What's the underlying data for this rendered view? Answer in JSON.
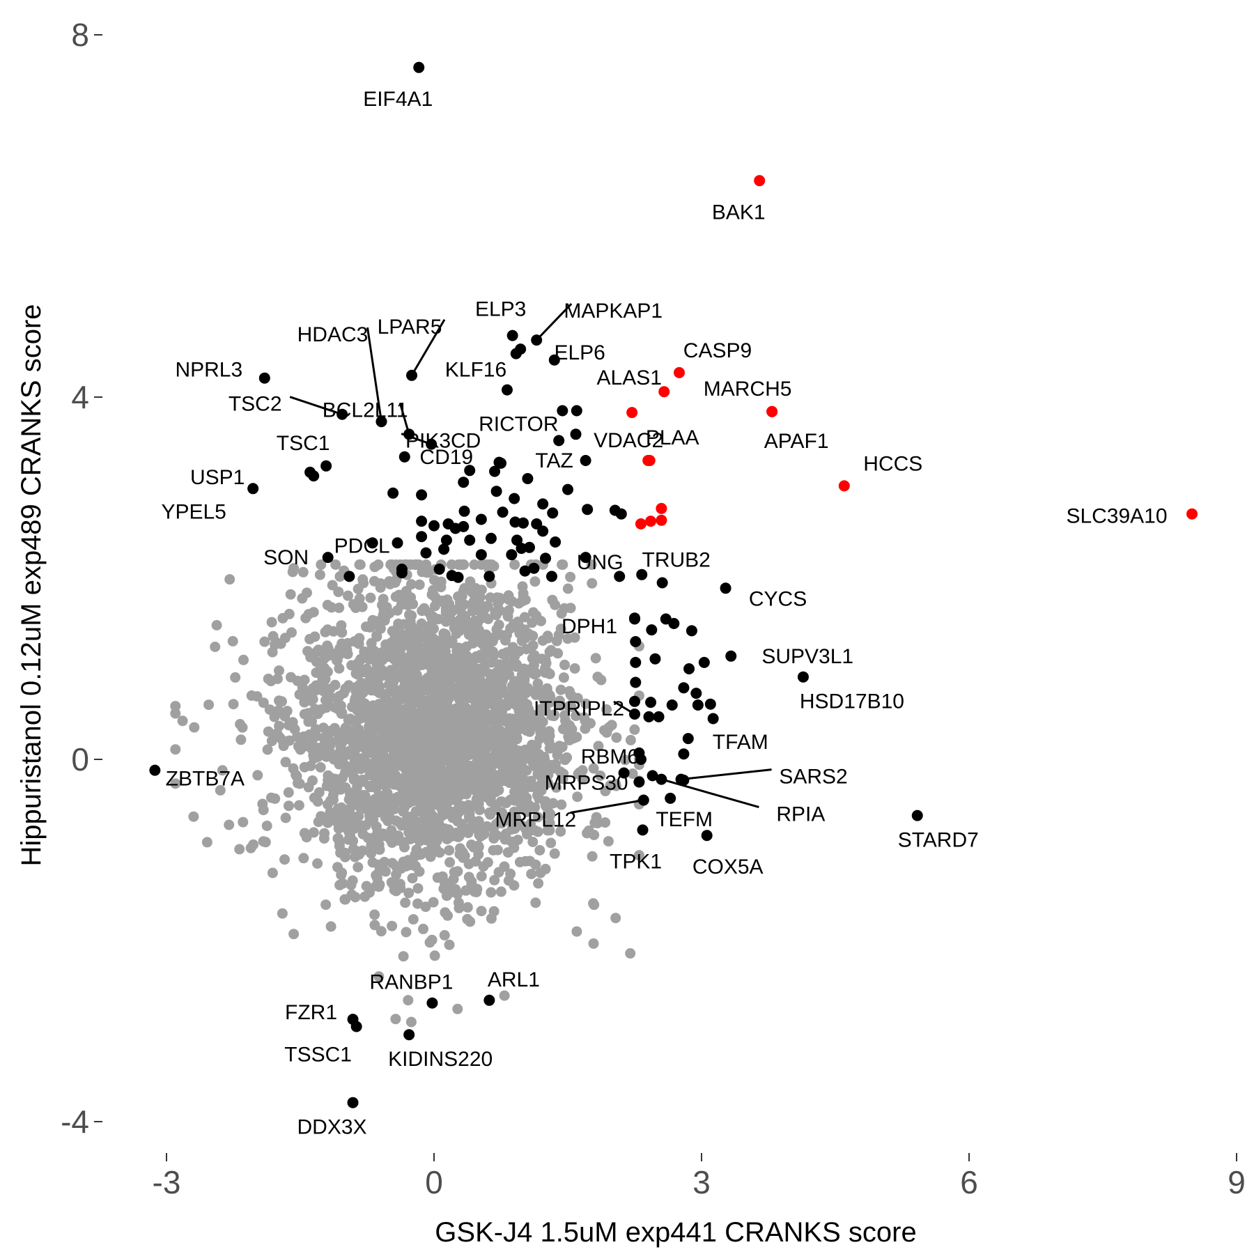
{
  "chart_data": {
    "type": "scatter",
    "xlabel": "GSK-J4 1.5uM exp441 CRANKS score",
    "ylabel": "Hippuristanol 0.12uM exp489 CRANKS score",
    "xlim": [
      -3.6,
      9.0
    ],
    "ylim": [
      -4.4,
      8.4
    ],
    "x_ticks": [
      -3,
      0,
      3,
      6,
      9
    ],
    "y_ticks": [
      -4,
      0,
      4,
      8
    ],
    "x_tick_labels": [
      "-3",
      "0",
      "3",
      "6",
      "9"
    ],
    "y_tick_labels": [
      "-4",
      "0",
      "4",
      "8"
    ],
    "grid": false,
    "legend": "none",
    "colors": {
      "background_cloud": "#a0a0a0",
      "highlight_black": "#000000",
      "highlight_red": "#ff0000"
    },
    "background_cloud": {
      "description_center": [
        0.0,
        0.3
      ],
      "spread_x": 0.75,
      "spread_y": 0.75,
      "color": "#a0a0a0"
    },
    "labeled_points": [
      {
        "label": "EIF4A1",
        "x": -0.17,
        "y": 7.64,
        "color": "#000000"
      },
      {
        "label": "BAK1",
        "x": 3.65,
        "y": 6.39,
        "color": "#ff0000"
      },
      {
        "label": "ELP3",
        "x": 0.88,
        "y": 4.68,
        "color": "#000000"
      },
      {
        "label": "MAPKAP1",
        "x": 1.15,
        "y": 4.63,
        "color": "#000000"
      },
      {
        "label": "ELP6",
        "x": 0.97,
        "y": 4.53,
        "color": "#000000"
      },
      {
        "label": "HDAC3",
        "x": -0.59,
        "y": 3.73,
        "color": "#000000"
      },
      {
        "label": "LPAR5",
        "x": -0.25,
        "y": 4.24,
        "color": "#000000"
      },
      {
        "label": "CASP9",
        "x": 2.75,
        "y": 4.27,
        "color": "#ff0000"
      },
      {
        "label": "NPRL3",
        "x": -1.9,
        "y": 4.21,
        "color": "#000000"
      },
      {
        "label": "BCL2L11",
        "x": -0.28,
        "y": 3.59,
        "color": "#000000"
      },
      {
        "label": "KLF16",
        "x": 0.82,
        "y": 4.08,
        "color": "#000000"
      },
      {
        "label": "ALAS1",
        "x": 2.58,
        "y": 4.06,
        "color": "#ff0000"
      },
      {
        "label": "MARCH5",
        "x": 3.79,
        "y": 3.84,
        "color": "#ff0000"
      },
      {
        "label": "TSC2",
        "x": -1.03,
        "y": 3.81,
        "color": "#000000"
      },
      {
        "label": "PIK3CD",
        "x": -0.03,
        "y": 3.48,
        "color": "#000000"
      },
      {
        "label": "RICTOR",
        "x": 1.44,
        "y": 3.85,
        "color": "#000000"
      },
      {
        "label": "VDAC2",
        "x": 2.22,
        "y": 3.83,
        "color": "#ff0000"
      },
      {
        "label": "APAF1",
        "x": 3.79,
        "y": 3.84,
        "color": "#ff0000"
      },
      {
        "label": "TSC1",
        "x": -1.21,
        "y": 3.24,
        "color": "#000000"
      },
      {
        "label": "CD19",
        "x": -0.33,
        "y": 3.34,
        "color": "#000000"
      },
      {
        "label": "TAZ",
        "x": 1.7,
        "y": 3.3,
        "color": "#000000"
      },
      {
        "label": "HCCS",
        "x": 4.6,
        "y": 3.02,
        "color": "#ff0000"
      },
      {
        "label": "USP1",
        "x": -1.35,
        "y": 3.13,
        "color": "#000000"
      },
      {
        "label": "PLAA",
        "x": 2.4,
        "y": 3.3,
        "color": "#ff0000"
      },
      {
        "label": "SLC39A10",
        "x": 8.5,
        "y": 2.71,
        "color": "#ff0000"
      },
      {
        "label": "YPEL5",
        "x": -2.03,
        "y": 2.99,
        "color": "#000000"
      },
      {
        "label": "PDCL",
        "x": -0.69,
        "y": 2.39,
        "color": "#000000"
      },
      {
        "label": "SON",
        "x": -1.19,
        "y": 2.23,
        "color": "#000000"
      },
      {
        "label": "TRUB2",
        "x": 2.56,
        "y": 1.95,
        "color": "#000000"
      },
      {
        "label": "CYCS",
        "x": 3.27,
        "y": 1.89,
        "color": "#000000"
      },
      {
        "label": "UNG",
        "x": 2.33,
        "y": 2.04,
        "color": "#000000"
      },
      {
        "label": "DPH1",
        "x": 2.25,
        "y": 1.56,
        "color": "#000000"
      },
      {
        "label": "SUPV3L1",
        "x": 3.33,
        "y": 1.14,
        "color": "#000000"
      },
      {
        "label": "HSD17B10",
        "x": 4.14,
        "y": 0.91,
        "color": "#000000"
      },
      {
        "label": "ITPRIPL2",
        "x": 2.25,
        "y": 0.5,
        "color": "#000000"
      },
      {
        "label": "TFAM",
        "x": 2.85,
        "y": 0.23,
        "color": "#000000"
      },
      {
        "label": "RBM6",
        "x": 2.3,
        "y": 0.07,
        "color": "#000000"
      },
      {
        "label": "ZBTB7A",
        "x": -3.13,
        "y": -0.12,
        "color": "#000000"
      },
      {
        "label": "SARS2",
        "x": 2.77,
        "y": -0.22,
        "color": "#000000"
      },
      {
        "label": "MRPS30",
        "x": 2.45,
        "y": -0.18,
        "color": "#000000"
      },
      {
        "label": "RPIA",
        "x": 2.55,
        "y": -0.22,
        "color": "#000000"
      },
      {
        "label": "STARD7",
        "x": 5.42,
        "y": -0.62,
        "color": "#000000"
      },
      {
        "label": "TEFM",
        "x": 2.65,
        "y": -0.43,
        "color": "#000000"
      },
      {
        "label": "MRPL12",
        "x": 2.35,
        "y": -0.45,
        "color": "#000000"
      },
      {
        "label": "COX5A",
        "x": 3.06,
        "y": -0.84,
        "color": "#000000"
      },
      {
        "label": "TPK1",
        "x": 2.34,
        "y": -0.78,
        "color": "#000000"
      },
      {
        "label": "ARL1",
        "x": 0.62,
        "y": -2.66,
        "color": "#000000"
      },
      {
        "label": "RANBP1",
        "x": -0.02,
        "y": -2.69,
        "color": "#000000"
      },
      {
        "label": "FZR1",
        "x": -0.91,
        "y": -2.87,
        "color": "#000000"
      },
      {
        "label": "TSSC1",
        "x": -0.87,
        "y": -2.95,
        "color": "#000000"
      },
      {
        "label": "KIDINS220",
        "x": -0.28,
        "y": -3.04,
        "color": "#000000"
      },
      {
        "label": "DDX3X",
        "x": -0.91,
        "y": -3.79,
        "color": "#000000"
      }
    ],
    "other_highlighted_points": [
      {
        "x": 0.92,
        "y": 4.48,
        "color": "#000000"
      },
      {
        "x": 1.35,
        "y": 4.41,
        "color": "#000000"
      },
      {
        "x": -0.59,
        "y": 3.73,
        "color": "#000000"
      },
      {
        "x": 1.4,
        "y": 3.52,
        "color": "#000000"
      },
      {
        "x": 1.59,
        "y": 3.59,
        "color": "#000000"
      },
      {
        "x": 1.6,
        "y": 3.85,
        "color": "#000000"
      },
      {
        "x": 0.75,
        "y": 3.27,
        "color": "#000000"
      },
      {
        "x": 0.68,
        "y": 3.18,
        "color": "#000000"
      },
      {
        "x": 0.4,
        "y": 3.19,
        "color": "#000000"
      },
      {
        "x": 0.33,
        "y": 3.06,
        "color": "#000000"
      },
      {
        "x": 1.05,
        "y": 3.1,
        "color": "#000000"
      },
      {
        "x": 1.5,
        "y": 2.98,
        "color": "#000000"
      },
      {
        "x": 0.73,
        "y": 3.28,
        "color": "#000000"
      },
      {
        "x": -0.46,
        "y": 2.94,
        "color": "#000000"
      },
      {
        "x": -0.14,
        "y": 2.92,
        "color": "#000000"
      },
      {
        "x": 0.7,
        "y": 2.96,
        "color": "#000000"
      },
      {
        "x": 0.9,
        "y": 2.88,
        "color": "#000000"
      },
      {
        "x": 1.22,
        "y": 2.82,
        "color": "#000000"
      },
      {
        "x": 0.34,
        "y": 2.74,
        "color": "#000000"
      },
      {
        "x": 0.77,
        "y": 2.73,
        "color": "#000000"
      },
      {
        "x": 1.33,
        "y": 2.72,
        "color": "#000000"
      },
      {
        "x": 1.72,
        "y": 2.76,
        "color": "#000000"
      },
      {
        "x": 2.03,
        "y": 2.75,
        "color": "#000000"
      },
      {
        "x": 2.1,
        "y": 2.71,
        "color": "#000000"
      },
      {
        "x": -0.14,
        "y": 2.63,
        "color": "#000000"
      },
      {
        "x": 0.0,
        "y": 2.58,
        "color": "#000000"
      },
      {
        "x": 0.16,
        "y": 2.6,
        "color": "#000000"
      },
      {
        "x": 0.24,
        "y": 2.55,
        "color": "#000000"
      },
      {
        "x": 0.33,
        "y": 2.57,
        "color": "#000000"
      },
      {
        "x": 0.53,
        "y": 2.65,
        "color": "#000000"
      },
      {
        "x": 0.91,
        "y": 2.62,
        "color": "#000000"
      },
      {
        "x": 1.0,
        "y": 2.61,
        "color": "#000000"
      },
      {
        "x": 1.15,
        "y": 2.6,
        "color": "#000000"
      },
      {
        "x": 1.22,
        "y": 2.52,
        "color": "#000000"
      },
      {
        "x": 1.36,
        "y": 2.4,
        "color": "#000000"
      },
      {
        "x": -0.14,
        "y": 2.46,
        "color": "#000000"
      },
      {
        "x": 0.14,
        "y": 2.42,
        "color": "#000000"
      },
      {
        "x": 0.4,
        "y": 2.42,
        "color": "#000000"
      },
      {
        "x": 0.64,
        "y": 2.44,
        "color": "#000000"
      },
      {
        "x": 0.93,
        "y": 2.42,
        "color": "#000000"
      },
      {
        "x": 1.07,
        "y": 2.34,
        "color": "#000000"
      },
      {
        "x": -0.41,
        "y": 2.39,
        "color": "#000000"
      },
      {
        "x": -0.09,
        "y": 2.28,
        "color": "#000000"
      },
      {
        "x": 0.11,
        "y": 2.32,
        "color": "#000000"
      },
      {
        "x": 0.53,
        "y": 2.26,
        "color": "#000000"
      },
      {
        "x": 0.87,
        "y": 2.26,
        "color": "#000000"
      },
      {
        "x": 0.98,
        "y": 2.33,
        "color": "#000000"
      },
      {
        "x": 1.25,
        "y": 2.22,
        "color": "#000000"
      },
      {
        "x": 1.7,
        "y": 2.23,
        "color": "#000000"
      },
      {
        "x": -0.95,
        "y": 2.02,
        "color": "#000000"
      },
      {
        "x": -0.36,
        "y": 2.06,
        "color": "#000000"
      },
      {
        "x": 0.06,
        "y": 2.1,
        "color": "#000000"
      },
      {
        "x": 0.2,
        "y": 2.03,
        "color": "#000000"
      },
      {
        "x": 0.27,
        "y": 2.01,
        "color": "#000000"
      },
      {
        "x": 0.62,
        "y": 2.02,
        "color": "#000000"
      },
      {
        "x": 1.02,
        "y": 2.08,
        "color": "#000000"
      },
      {
        "x": 1.12,
        "y": 2.11,
        "color": "#000000"
      },
      {
        "x": 1.32,
        "y": 2.02,
        "color": "#000000"
      },
      {
        "x": 2.08,
        "y": 2.02,
        "color": "#000000"
      },
      {
        "x": 2.25,
        "y": 1.55,
        "color": "#000000"
      },
      {
        "x": 2.44,
        "y": 1.43,
        "color": "#000000"
      },
      {
        "x": 2.6,
        "y": 1.55,
        "color": "#000000"
      },
      {
        "x": 2.69,
        "y": 1.5,
        "color": "#000000"
      },
      {
        "x": 2.89,
        "y": 1.42,
        "color": "#000000"
      },
      {
        "x": 3.03,
        "y": 1.07,
        "color": "#000000"
      },
      {
        "x": 2.26,
        "y": 1.3,
        "color": "#000000"
      },
      {
        "x": 2.48,
        "y": 1.11,
        "color": "#000000"
      },
      {
        "x": 2.86,
        "y": 1.0,
        "color": "#000000"
      },
      {
        "x": 2.26,
        "y": 1.07,
        "color": "#000000"
      },
      {
        "x": 2.26,
        "y": 0.85,
        "color": "#000000"
      },
      {
        "x": 2.8,
        "y": 0.79,
        "color": "#000000"
      },
      {
        "x": 2.94,
        "y": 0.73,
        "color": "#000000"
      },
      {
        "x": 2.25,
        "y": 0.64,
        "color": "#000000"
      },
      {
        "x": 2.43,
        "y": 0.63,
        "color": "#000000"
      },
      {
        "x": 2.67,
        "y": 0.6,
        "color": "#000000"
      },
      {
        "x": 2.96,
        "y": 0.6,
        "color": "#000000"
      },
      {
        "x": 3.1,
        "y": 0.61,
        "color": "#000000"
      },
      {
        "x": 2.41,
        "y": 0.47,
        "color": "#000000"
      },
      {
        "x": 2.52,
        "y": 0.47,
        "color": "#000000"
      },
      {
        "x": 3.13,
        "y": 0.45,
        "color": "#000000"
      },
      {
        "x": 2.8,
        "y": 0.06,
        "color": "#000000"
      },
      {
        "x": 2.32,
        "y": 0.0,
        "color": "#000000"
      },
      {
        "x": 2.13,
        "y": -0.15,
        "color": "#000000"
      },
      {
        "x": 2.3,
        "y": -0.25,
        "color": "#000000"
      },
      {
        "x": 2.8,
        "y": -0.23,
        "color": "#000000"
      },
      {
        "x": -0.36,
        "y": 2.1,
        "color": "#000000"
      },
      {
        "x": -1.39,
        "y": 3.17,
        "color": "#000000"
      },
      {
        "x": 2.55,
        "y": 2.64,
        "color": "#ff0000"
      },
      {
        "x": 2.43,
        "y": 2.63,
        "color": "#ff0000"
      },
      {
        "x": 2.32,
        "y": 2.6,
        "color": "#ff0000"
      },
      {
        "x": 2.55,
        "y": 2.77,
        "color": "#ff0000"
      },
      {
        "x": 2.42,
        "y": 3.3,
        "color": "#ff0000"
      }
    ]
  }
}
